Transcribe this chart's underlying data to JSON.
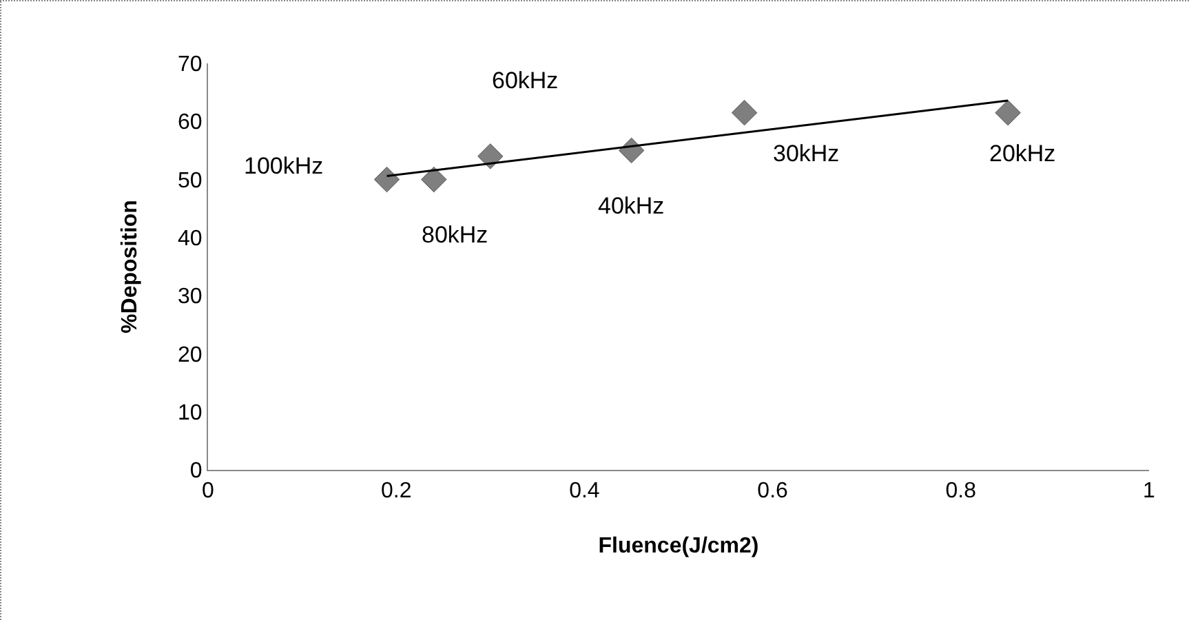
{
  "chart_data": {
    "type": "scatter",
    "xlabel": "Fluence(J/cm2)",
    "ylabel": "%Deposition",
    "x": [
      0.19,
      0.24,
      0.3,
      0.45,
      0.57,
      0.85
    ],
    "series": [
      {
        "color": "#7f7f7f",
        "marker": "diamond",
        "values": [
          50,
          50,
          54,
          55,
          61.5,
          61.5
        ]
      },
      {
        "type": "line",
        "color": "#000000",
        "line_style": "solid",
        "marker": "none",
        "x": [
          0.19,
          0.85
        ],
        "values": [
          50.6,
          63.6
        ]
      }
    ],
    "annotations": [
      {
        "text": "100kHz",
        "x": 0.19,
        "y": 50
      },
      {
        "text": "80kHz",
        "x": 0.24,
        "y": 50
      },
      {
        "text": "60kHz",
        "x": 0.3,
        "y": 54
      },
      {
        "text": "40kHz",
        "x": 0.45,
        "y": 55
      },
      {
        "text": "30kHz",
        "x": 0.57,
        "y": 61.5
      },
      {
        "text": "20kHz",
        "x": 0.85,
        "y": 61.5
      }
    ],
    "xlim": [
      0,
      1
    ],
    "xticks": [
      0,
      0.2,
      0.4,
      0.6,
      0.8,
      1
    ],
    "ylim": [
      0,
      70
    ],
    "yticks": [
      0,
      10,
      20,
      30,
      40,
      50,
      60,
      70
    ],
    "grid": false
  }
}
